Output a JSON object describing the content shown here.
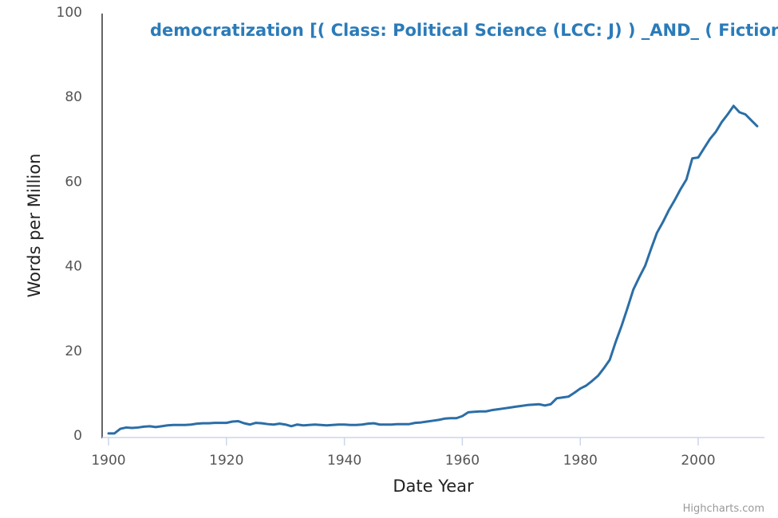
{
  "chart_data": {
    "type": "line",
    "title": "democratization [( Class: Political Science (LCC: J) ) _AND_ ( Fiction or N",
    "xlabel": "Date Year",
    "ylabel": "Words per Million",
    "xlim": [
      1899,
      2012
    ],
    "ylim": [
      0,
      100
    ],
    "xticks": [
      "1900",
      "1920",
      "1940",
      "1960",
      "1980",
      "2000"
    ],
    "yticks": [
      "0",
      "20",
      "40",
      "60",
      "80",
      "100"
    ],
    "grid": false,
    "legend": "none",
    "credit": "Highcharts.com",
    "series": [
      {
        "name": "democratization",
        "color": "#2b6ea6",
        "x": [
          1900,
          1901,
          1902,
          1903,
          1904,
          1905,
          1906,
          1907,
          1908,
          1909,
          1910,
          1911,
          1912,
          1913,
          1914,
          1915,
          1916,
          1917,
          1918,
          1919,
          1920,
          1921,
          1922,
          1923,
          1924,
          1925,
          1926,
          1927,
          1928,
          1929,
          1930,
          1931,
          1932,
          1933,
          1934,
          1935,
          1936,
          1937,
          1938,
          1939,
          1940,
          1941,
          1942,
          1943,
          1944,
          1945,
          1946,
          1947,
          1948,
          1949,
          1950,
          1951,
          1952,
          1953,
          1954,
          1955,
          1956,
          1957,
          1958,
          1959,
          1960,
          1961,
          1962,
          1963,
          1964,
          1965,
          1966,
          1967,
          1968,
          1969,
          1970,
          1971,
          1972,
          1973,
          1974,
          1975,
          1976,
          1977,
          1978,
          1979,
          1980,
          1981,
          1982,
          1983,
          1984,
          1985,
          1986,
          1987,
          1988,
          1989,
          1990,
          1991,
          1992,
          1993,
          1994,
          1995,
          1996,
          1997,
          1998,
          1999,
          2000,
          2001,
          2002,
          2003,
          2004,
          2005,
          2006,
          2007,
          2008,
          2009,
          2010
        ],
        "values": [
          0.4,
          0.4,
          1.5,
          1.8,
          1.7,
          1.8,
          2.0,
          2.1,
          1.9,
          2.1,
          2.3,
          2.4,
          2.4,
          2.4,
          2.5,
          2.7,
          2.8,
          2.8,
          2.9,
          2.9,
          2.9,
          3.2,
          3.3,
          2.8,
          2.5,
          2.9,
          2.8,
          2.6,
          2.5,
          2.7,
          2.5,
          2.1,
          2.5,
          2.3,
          2.4,
          2.5,
          2.4,
          2.3,
          2.4,
          2.5,
          2.5,
          2.4,
          2.4,
          2.5,
          2.7,
          2.8,
          2.5,
          2.5,
          2.5,
          2.6,
          2.6,
          2.6,
          2.9,
          3.0,
          3.2,
          3.4,
          3.6,
          3.9,
          4.0,
          4.0,
          4.5,
          5.4,
          5.5,
          5.6,
          5.6,
          5.9,
          6.1,
          6.3,
          6.5,
          6.7,
          6.9,
          7.1,
          7.2,
          7.3,
          7.0,
          7.3,
          8.7,
          8.9,
          9.1,
          10.0,
          11.0,
          11.7,
          12.8,
          14.0,
          15.8,
          17.8,
          22.0,
          25.8,
          30.0,
          34.4,
          37.3,
          40.0,
          44.0,
          47.8,
          50.3,
          53.1,
          55.5,
          58.1,
          60.4,
          65.4,
          65.6,
          67.8,
          70.0,
          71.7,
          74.0,
          75.8,
          77.8,
          76.3,
          75.8,
          74.4,
          73.0
        ]
      }
    ]
  }
}
